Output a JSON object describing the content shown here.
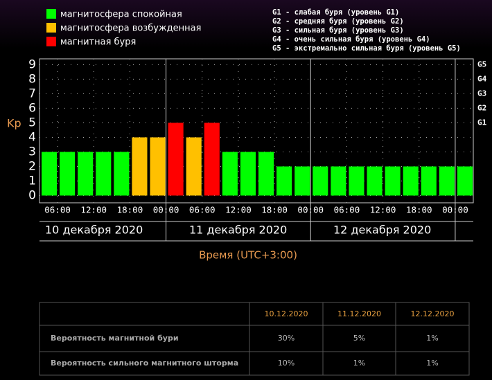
{
  "chart_data": {
    "type": "bar",
    "ylabel": "Kp",
    "xlabel": "Время (UTC+3:00)",
    "legend": [
      {
        "name": "магнитосфера спокойная",
        "color": "#00ff00"
      },
      {
        "name": "магнитосфера возбужденная",
        "color": "#ffc000"
      },
      {
        "name": "магнитная буря",
        "color": "#ff0000"
      }
    ],
    "storm_levels": [
      "G1 - слабая буря (уровень G1)",
      "G2 - средняя буря (уровень G2)",
      "G3 - сильная буря (уровень G3)",
      "G4 - очень сильная буря (уровень G4)",
      "G5 - экстремально сильная буря (уровень G5)"
    ],
    "values": [
      3,
      3,
      3,
      3,
      3,
      4,
      4,
      5,
      4,
      5,
      3,
      3,
      3,
      2,
      2,
      2,
      2,
      2,
      2,
      2,
      2,
      2,
      2,
      2
    ],
    "colors": [
      "#00ff00",
      "#00ff00",
      "#00ff00",
      "#00ff00",
      "#00ff00",
      "#ffc000",
      "#ffc000",
      "#ff0000",
      "#ffc000",
      "#ff0000",
      "#00ff00",
      "#00ff00",
      "#00ff00",
      "#00ff00",
      "#00ff00",
      "#00ff00",
      "#00ff00",
      "#00ff00",
      "#00ff00",
      "#00ff00",
      "#00ff00",
      "#00ff00",
      "#00ff00",
      "#00ff00"
    ],
    "ylim": [
      -0.5,
      9.4
    ],
    "yticks": [
      0,
      1,
      2,
      3,
      4,
      5,
      6,
      7,
      8,
      9
    ],
    "y2ticks": [
      {
        "value": 5,
        "label": "G1"
      },
      {
        "value": 6,
        "label": "G2"
      },
      {
        "value": 7,
        "label": "G3"
      },
      {
        "value": 8,
        "label": "G4"
      },
      {
        "value": 9,
        "label": "G5"
      }
    ],
    "xlim": [
      0,
      24
    ],
    "xticks": [
      {
        "value": 1,
        "label": "06:00"
      },
      {
        "value": 3,
        "label": "12:00"
      },
      {
        "value": 5,
        "label": "18:00"
      },
      {
        "value": 7,
        "label": "00:00"
      },
      {
        "value": 9,
        "label": "06:00"
      },
      {
        "value": 11,
        "label": "12:00"
      },
      {
        "value": 13,
        "label": "18:00"
      },
      {
        "value": 15,
        "label": "00:00"
      },
      {
        "value": 17,
        "label": "06:00"
      },
      {
        "value": 19,
        "label": "12:00"
      },
      {
        "value": 21,
        "label": "18:00"
      },
      {
        "value": 23,
        "label": "00:00"
      }
    ],
    "days": [
      "10 декабря 2020",
      "11 декабря 2020",
      "12 декабря 2020"
    ],
    "grid": true
  },
  "table": {
    "header": [
      "10.12.2020",
      "11.12.2020",
      "12.12.2020"
    ],
    "rows": [
      [
        "Вероятность магнитной бури",
        "30%",
        "5%",
        "1%"
      ],
      [
        "Вероятность сильного магнитного шторма",
        "10%",
        "1%",
        "1%"
      ]
    ]
  }
}
